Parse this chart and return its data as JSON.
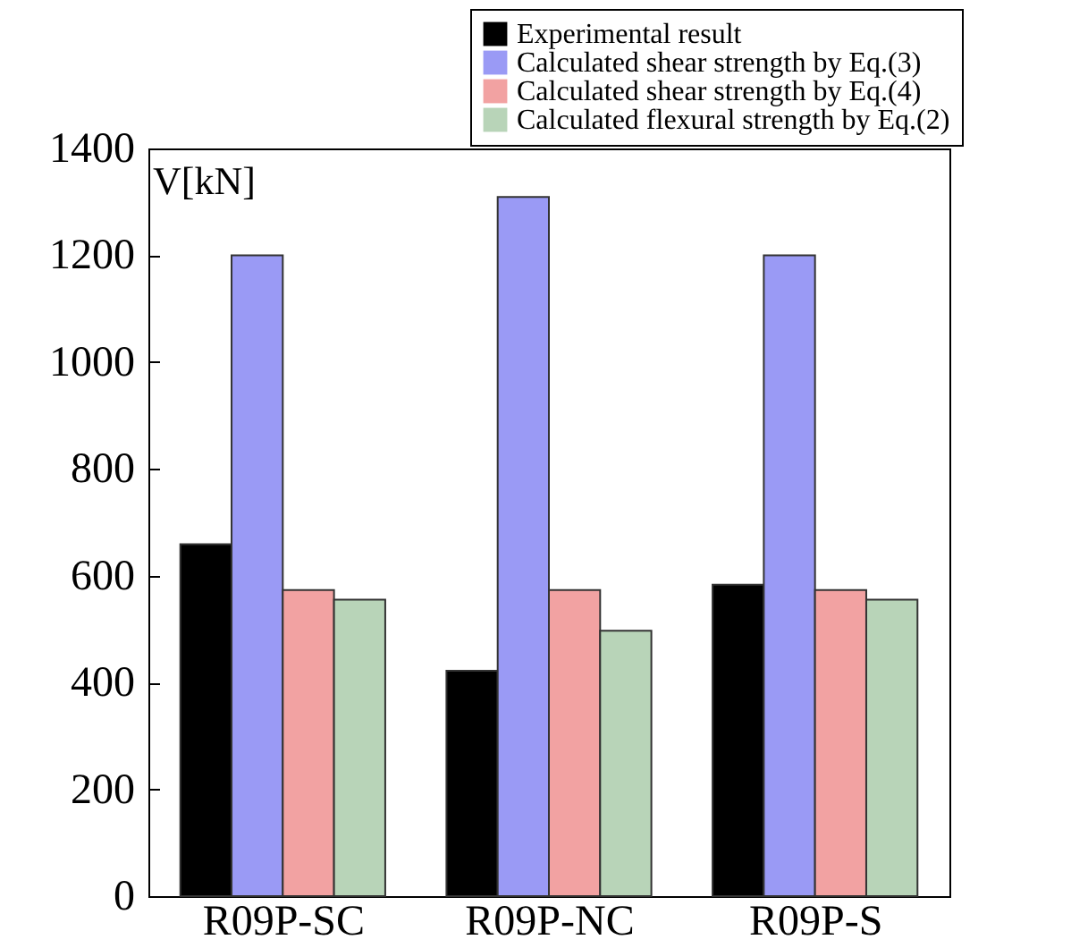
{
  "chart_data": {
    "type": "bar",
    "ylabel": "V[kN]",
    "categories": [
      "R09P-SC",
      "R09P-NC",
      "R09P-S"
    ],
    "series": [
      {
        "name": "Experimental result",
        "color": "#000000",
        "values": [
          659,
          422,
          583
        ]
      },
      {
        "name": "Calculated shear strength by Eq.(3)",
        "color": "#9a9af5",
        "values": [
          1200,
          1309,
          1200
        ]
      },
      {
        "name": "Calculated shear strength by Eq.(4)",
        "color": "#f2a2a2",
        "values": [
          573,
          573,
          573
        ]
      },
      {
        "name": "Calculated flexural strength by Eq.(2)",
        "color": "#b8d4b8",
        "values": [
          555,
          497,
          555
        ]
      }
    ],
    "ylim": [
      0,
      1400
    ],
    "yticks": [
      0,
      200,
      400,
      600,
      800,
      1000,
      1200,
      1400
    ],
    "grid": false,
    "legend": "top right"
  }
}
